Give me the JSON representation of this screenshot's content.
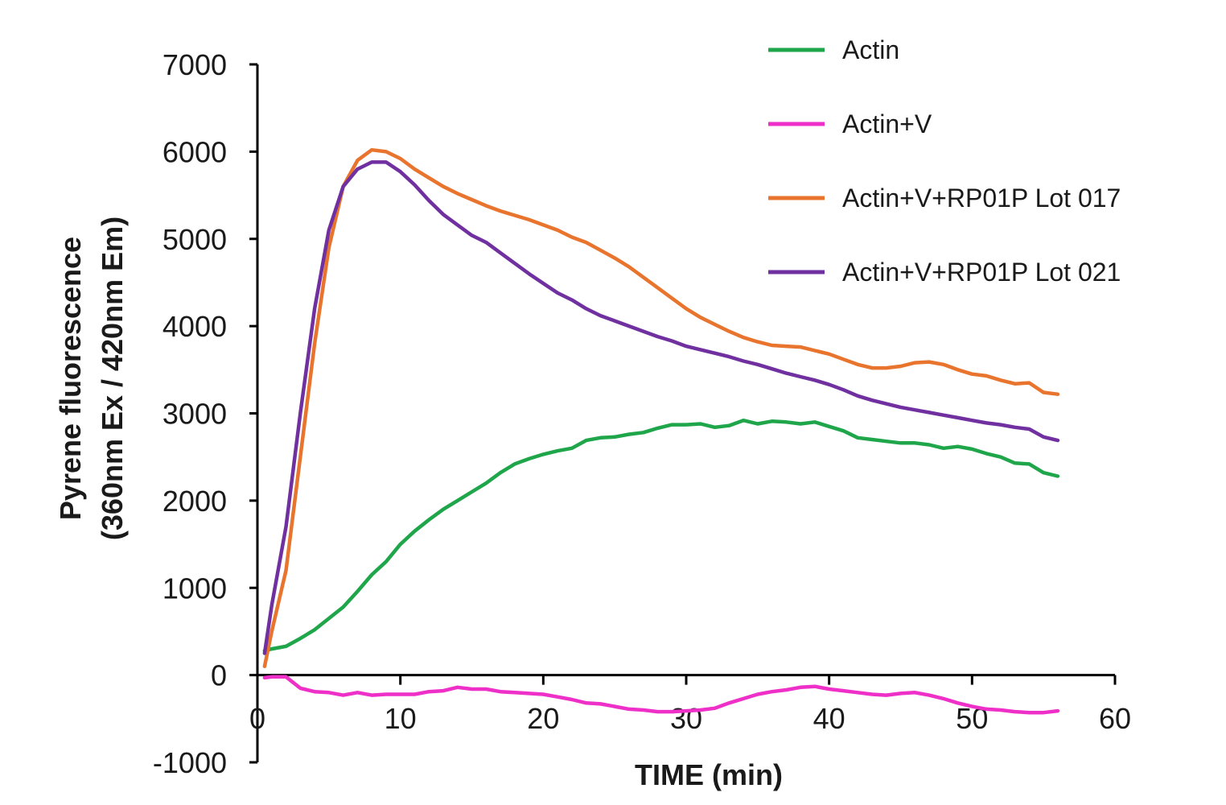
{
  "chart_data": {
    "type": "line",
    "title": "",
    "xlabel": "TIME (min)",
    "ylabel_line1": "Pyrene fluorescence",
    "ylabel_line2": "(360nm Ex / 420nm Em)",
    "xlim": [
      0,
      60
    ],
    "ylim": [
      -1000,
      7000
    ],
    "x_ticks": [
      0,
      10,
      20,
      30,
      40,
      50,
      60
    ],
    "y_ticks": [
      -1000,
      0,
      1000,
      2000,
      3000,
      4000,
      5000,
      6000,
      7000
    ],
    "x_tick_labels": [
      "0",
      "10",
      "20",
      "30",
      "40",
      "50",
      "60"
    ],
    "y_tick_labels": [
      "-1000",
      "0",
      "1000",
      "2000",
      "3000",
      "4000",
      "5000",
      "6000",
      "7000"
    ],
    "grid": false,
    "legend_position": "top-right",
    "series": [
      {
        "name": "Actin",
        "color": "#1fa64a",
        "x": [
          0.5,
          1,
          2,
          3,
          4,
          5,
          6,
          7,
          8,
          9,
          10,
          11,
          12,
          13,
          14,
          15,
          16,
          17,
          18,
          19,
          20,
          21,
          22,
          23,
          24,
          25,
          26,
          27,
          28,
          29,
          30,
          31,
          32,
          33,
          34,
          35,
          36,
          37,
          38,
          39,
          40,
          41,
          42,
          43,
          44,
          45,
          46,
          47,
          48,
          49,
          50,
          51,
          52,
          53,
          54,
          55,
          56
        ],
        "y": [
          280,
          300,
          330,
          420,
          520,
          650,
          780,
          960,
          1150,
          1300,
          1500,
          1650,
          1780,
          1900,
          2000,
          2100,
          2200,
          2320,
          2420,
          2480,
          2530,
          2570,
          2600,
          2690,
          2720,
          2730,
          2760,
          2780,
          2830,
          2870,
          2870,
          2880,
          2840,
          2860,
          2920,
          2880,
          2910,
          2900,
          2880,
          2900,
          2850,
          2800,
          2720,
          2700,
          2680,
          2660,
          2660,
          2640,
          2600,
          2620,
          2590,
          2540,
          2500,
          2430,
          2420,
          2320,
          2280
        ]
      },
      {
        "name": "Actin+V",
        "color": "#ee2fc8",
        "x": [
          0.5,
          1,
          2,
          3,
          4,
          5,
          6,
          7,
          8,
          9,
          10,
          11,
          12,
          13,
          14,
          15,
          16,
          17,
          18,
          19,
          20,
          21,
          22,
          23,
          24,
          25,
          26,
          27,
          28,
          29,
          30,
          31,
          32,
          33,
          34,
          35,
          36,
          37,
          38,
          39,
          40,
          41,
          42,
          43,
          44,
          45,
          46,
          47,
          48,
          49,
          50,
          51,
          52,
          53,
          54,
          55,
          56
        ],
        "y": [
          -30,
          -20,
          -20,
          -150,
          -190,
          -200,
          -230,
          -200,
          -230,
          -220,
          -220,
          -220,
          -190,
          -180,
          -140,
          -160,
          -160,
          -190,
          -200,
          -210,
          -220,
          -250,
          -280,
          -320,
          -330,
          -360,
          -390,
          -400,
          -420,
          -420,
          -410,
          -400,
          -380,
          -320,
          -270,
          -220,
          -190,
          -170,
          -140,
          -130,
          -160,
          -180,
          -200,
          -220,
          -230,
          -210,
          -200,
          -230,
          -270,
          -320,
          -360,
          -390,
          -400,
          -420,
          -430,
          -430,
          -410
        ]
      },
      {
        "name": "Actin+V+RP01P Lot 017",
        "color": "#e8742e",
        "x": [
          0.5,
          1,
          2,
          3,
          4,
          5,
          6,
          7,
          8,
          9,
          10,
          11,
          12,
          13,
          14,
          15,
          16,
          17,
          18,
          19,
          20,
          21,
          22,
          23,
          24,
          25,
          26,
          27,
          28,
          29,
          30,
          31,
          32,
          33,
          34,
          35,
          36,
          37,
          38,
          39,
          40,
          41,
          42,
          43,
          44,
          45,
          46,
          47,
          48,
          49,
          50,
          51,
          52,
          53,
          54,
          55,
          56
        ],
        "y": [
          100,
          500,
          1200,
          2500,
          3800,
          4900,
          5600,
          5900,
          6020,
          6000,
          5920,
          5800,
          5700,
          5600,
          5520,
          5450,
          5380,
          5320,
          5270,
          5220,
          5160,
          5100,
          5020,
          4960,
          4870,
          4780,
          4680,
          4560,
          4440,
          4320,
          4200,
          4100,
          4020,
          3940,
          3870,
          3820,
          3780,
          3770,
          3760,
          3720,
          3680,
          3620,
          3560,
          3520,
          3520,
          3540,
          3580,
          3590,
          3560,
          3500,
          3450,
          3430,
          3380,
          3340,
          3350,
          3240,
          3220
        ]
      },
      {
        "name": "Actin+V+RP01P Lot 021",
        "color": "#7030a0",
        "x": [
          0.5,
          1,
          2,
          3,
          4,
          5,
          6,
          7,
          8,
          9,
          10,
          11,
          12,
          13,
          14,
          15,
          16,
          17,
          18,
          19,
          20,
          21,
          22,
          23,
          24,
          25,
          26,
          27,
          28,
          29,
          30,
          31,
          32,
          33,
          34,
          35,
          36,
          37,
          38,
          39,
          40,
          41,
          42,
          43,
          44,
          45,
          46,
          47,
          48,
          49,
          50,
          51,
          52,
          53,
          54,
          55,
          56
        ],
        "y": [
          250,
          800,
          1700,
          3000,
          4200,
          5100,
          5600,
          5800,
          5880,
          5880,
          5770,
          5620,
          5440,
          5280,
          5160,
          5040,
          4960,
          4840,
          4720,
          4600,
          4490,
          4380,
          4300,
          4200,
          4120,
          4060,
          4000,
          3940,
          3880,
          3830,
          3770,
          3730,
          3690,
          3650,
          3600,
          3560,
          3510,
          3460,
          3420,
          3380,
          3330,
          3270,
          3200,
          3150,
          3110,
          3070,
          3040,
          3010,
          2980,
          2950,
          2920,
          2890,
          2870,
          2840,
          2820,
          2730,
          2690
        ]
      }
    ]
  }
}
